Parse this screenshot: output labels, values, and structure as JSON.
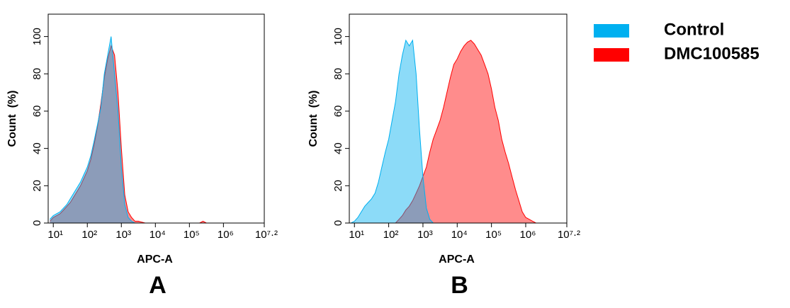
{
  "chart_data": [
    {
      "type": "area",
      "panel": "A",
      "xlabel": "APC-A",
      "ylabel": "Count  (%)",
      "xscale": "log",
      "xlim": [
        7.08,
        15848932
      ],
      "ylim": [
        0,
        112
      ],
      "xticks": [
        {
          "value": 10,
          "label": "10¹"
        },
        {
          "value": 100,
          "label": "10²"
        },
        {
          "value": 1000,
          "label": "10³"
        },
        {
          "value": 10000,
          "label": "10⁴"
        },
        {
          "value": 100000,
          "label": "10⁵"
        },
        {
          "value": 1000000,
          "label": "10⁶"
        },
        {
          "value": 15848932,
          "label": "10⁷·²"
        }
      ],
      "yticks": [
        0,
        20,
        40,
        60,
        80,
        100
      ],
      "x": [
        7.94,
        10,
        12.6,
        15.8,
        20,
        25.1,
        31.6,
        39.8,
        50.1,
        63.1,
        79.4,
        100,
        126,
        158,
        200,
        251,
        316,
        398,
        501,
        631,
        794,
        1000,
        1259,
        1585,
        1995,
        2512,
        3162,
        3981,
        5012,
        6310,
        7943,
        10000,
        12589,
        15849,
        19953,
        25119,
        31623,
        39811,
        50119,
        63096,
        79433,
        100000,
        125893,
        158489,
        199526,
        251189,
        316228,
        398107,
        501187,
        630957,
        794328,
        1000000,
        1258925,
        1584893,
        1995262
      ],
      "series": [
        {
          "name": "DMC100585",
          "color": "#ff0000",
          "values": [
            1,
            3,
            4,
            5,
            7,
            9,
            11,
            14,
            17,
            20,
            24,
            28,
            34,
            42,
            52,
            64,
            78,
            88,
            95,
            90,
            70,
            40,
            15,
            6,
            3,
            1,
            1,
            0.5,
            0,
            0,
            0,
            0,
            0,
            0,
            0,
            0,
            0,
            0,
            0,
            0,
            0,
            0,
            0,
            0,
            0,
            1,
            0,
            0,
            0,
            0,
            0,
            0,
            0,
            0,
            0
          ]
        },
        {
          "name": "Control",
          "color": "#00b0f0",
          "values": [
            2,
            4,
            5,
            6,
            8,
            10,
            13,
            16,
            19,
            22,
            26,
            30,
            36,
            44,
            53,
            62,
            80,
            90,
            100,
            80,
            60,
            30,
            10,
            3,
            1,
            0,
            0,
            0,
            0,
            0,
            0,
            0,
            0,
            0,
            0,
            0,
            0,
            0,
            0,
            0,
            0,
            0,
            0,
            0,
            0,
            0,
            0,
            0,
            0,
            0,
            0,
            0,
            0,
            0,
            0
          ]
        }
      ]
    },
    {
      "type": "area",
      "panel": "B",
      "xlabel": "APC-A",
      "ylabel": "Count  (%)",
      "xscale": "log",
      "xlim": [
        7.08,
        15848932
      ],
      "ylim": [
        0,
        112
      ],
      "xticks": [
        {
          "value": 10,
          "label": "10¹"
        },
        {
          "value": 100,
          "label": "10²"
        },
        {
          "value": 1000,
          "label": "10³"
        },
        {
          "value": 10000,
          "label": "10⁴"
        },
        {
          "value": 100000,
          "label": "10⁵"
        },
        {
          "value": 1000000,
          "label": "10⁶"
        },
        {
          "value": 15848932,
          "label": "10⁷·²"
        }
      ],
      "yticks": [
        0,
        20,
        40,
        60,
        80,
        100
      ],
      "x": [
        7.94,
        10,
        12.6,
        15.8,
        20,
        25.1,
        31.6,
        39.8,
        50.1,
        63.1,
        79.4,
        100,
        126,
        158,
        200,
        251,
        316,
        398,
        501,
        631,
        794,
        1000,
        1259,
        1585,
        1995,
        2512,
        3162,
        3981,
        5012,
        6310,
        7943,
        10000,
        12589,
        15849,
        19953,
        25119,
        31623,
        39811,
        50119,
        63096,
        79433,
        100000,
        125893,
        158489,
        199526,
        251189,
        316228,
        398107,
        501187,
        630957,
        794328,
        1000000,
        1258925,
        1584893,
        1995262
      ],
      "series": [
        {
          "name": "DMC100585",
          "color": "#ff0000",
          "values": [
            0,
            0,
            0,
            0,
            0,
            0,
            0,
            0,
            0,
            0,
            0,
            0,
            0,
            0,
            2,
            4,
            7,
            9,
            12,
            16,
            20,
            25,
            30,
            38,
            45,
            50,
            55,
            62,
            70,
            78,
            85,
            88,
            92,
            95,
            97,
            98,
            96,
            93,
            90,
            85,
            80,
            72,
            62,
            55,
            45,
            38,
            32,
            25,
            18,
            12,
            6,
            3,
            2,
            1,
            0
          ]
        },
        {
          "name": "Control",
          "color": "#00b0f0",
          "values": [
            0,
            1,
            3,
            6,
            9,
            11,
            13,
            16,
            22,
            30,
            38,
            45,
            55,
            65,
            80,
            90,
            98,
            95,
            98,
            80,
            50,
            25,
            8,
            2,
            0,
            0,
            0,
            0,
            0,
            0,
            0,
            0,
            0,
            0,
            0,
            0,
            0,
            0,
            0,
            0,
            0,
            0,
            0,
            0,
            0,
            0,
            0,
            0,
            0,
            0,
            0,
            0,
            0,
            0,
            0
          ]
        }
      ]
    }
  ]
}
